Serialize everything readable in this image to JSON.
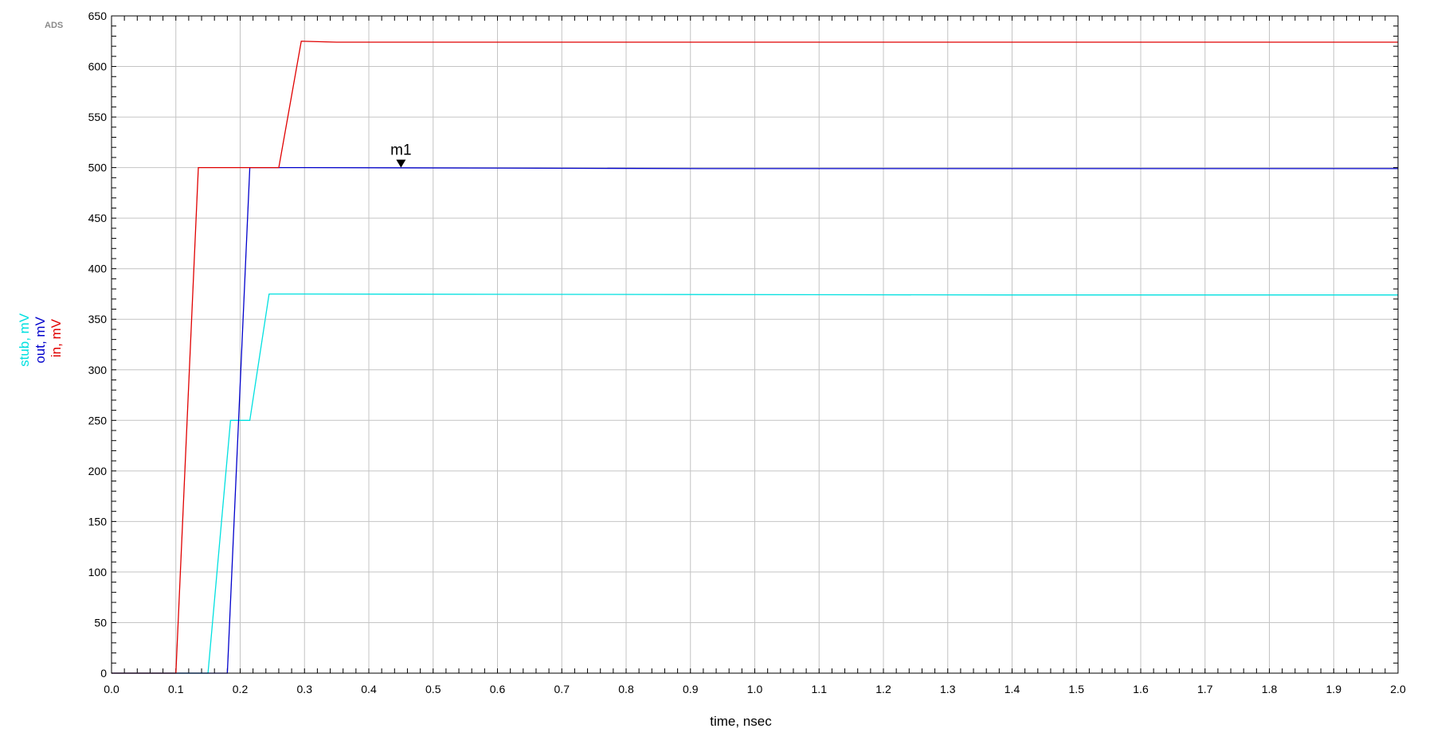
{
  "app_tag": "ADS",
  "chart_data": {
    "type": "line",
    "title": "",
    "xlabel": "time, nsec",
    "ylabel_parts": [
      {
        "text": "stub, mV",
        "color": "#00e0e0"
      },
      {
        "text": "out, mV",
        "color": "#0000cc"
      },
      {
        "text": "in, mV",
        "color": "#e00000"
      }
    ],
    "xlim": [
      0,
      2.0
    ],
    "ylim": [
      0,
      650
    ],
    "x_ticks": [
      0.0,
      0.1,
      0.2,
      0.3,
      0.4,
      0.5,
      0.6,
      0.7,
      0.8,
      0.9,
      1.0,
      1.1,
      1.2,
      1.3,
      1.4,
      1.5,
      1.6,
      1.7,
      1.8,
      1.9,
      2.0
    ],
    "x_tick_labels": [
      "0.0",
      "0.1",
      "0.2",
      "0.3",
      "0.4",
      "0.5",
      "0.6",
      "0.7",
      "0.8",
      "0.9",
      "1.0",
      "1.1",
      "1.2",
      "1.3",
      "1.4",
      "1.5",
      "1.6",
      "1.7",
      "1.8",
      "1.9",
      "2.0"
    ],
    "y_ticks": [
      0,
      50,
      100,
      150,
      200,
      250,
      300,
      350,
      400,
      450,
      500,
      550,
      600,
      650
    ],
    "y_tick_labels": [
      "0",
      "50",
      "100",
      "150",
      "200",
      "250",
      "300",
      "350",
      "400",
      "450",
      "500",
      "550",
      "600",
      "650"
    ],
    "x_minor_per_major": 5,
    "y_minor_per_major": 5,
    "grid": true,
    "series": [
      {
        "key": "stub",
        "color": "#00e0e0",
        "x": [
          0.0,
          0.15,
          0.185,
          0.2,
          0.215,
          0.245,
          0.3,
          1.39,
          2.0
        ],
        "y": [
          0,
          0,
          250,
          250,
          250,
          375,
          375,
          374,
          374
        ]
      },
      {
        "key": "out",
        "color": "#0000cc",
        "x": [
          0.0,
          0.18,
          0.215,
          0.26,
          0.3,
          0.92,
          2.0
        ],
        "y": [
          0,
          0,
          500,
          500,
          500,
          499,
          499
        ]
      },
      {
        "key": "in",
        "color": "#e00000",
        "x": [
          0.0,
          0.1,
          0.135,
          0.26,
          0.295,
          0.35,
          2.0
        ],
        "y": [
          0,
          0,
          500,
          500,
          625,
          624,
          624
        ]
      }
    ],
    "markers": [
      {
        "label": "m1",
        "x": 0.45,
        "y": 500
      }
    ]
  }
}
